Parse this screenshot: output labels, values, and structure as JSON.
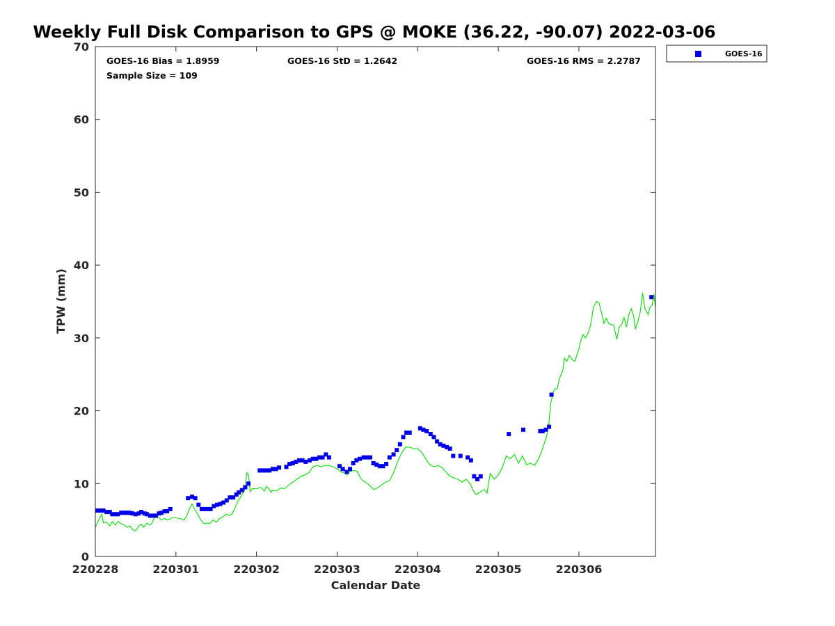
{
  "chart_data": {
    "type": "scatter",
    "title": "Weekly Full Disk Comparison to GPS @ MOKE (36.22, -90.07) 2022-03-06",
    "xlabel": "Calendar Date",
    "ylabel": "TPW (mm)",
    "xlim": [
      0,
      6.95
    ],
    "ylim": [
      0,
      70
    ],
    "grid": false,
    "legend_position": "top-right-outside",
    "x_ticks": [
      {
        "value": 0,
        "label": "220228"
      },
      {
        "value": 1,
        "label": "220301"
      },
      {
        "value": 2,
        "label": "220302"
      },
      {
        "value": 3,
        "label": "220303"
      },
      {
        "value": 4,
        "label": "220304"
      },
      {
        "value": 5,
        "label": "220305"
      },
      {
        "value": 6,
        "label": "220306"
      }
    ],
    "y_ticks": [
      0,
      10,
      20,
      30,
      40,
      50,
      60,
      70
    ],
    "stats": {
      "bias": "GOES-16 Bias = 1.8959",
      "std": "GOES-16 StD = 1.2642",
      "rms": "GOES-16 RMS = 2.2787",
      "sample": "Sample Size = 109"
    },
    "legend": [
      {
        "name": "GOES-16",
        "color": "#0000e6",
        "marker": "square"
      }
    ],
    "series": [
      {
        "name": "GOES-16",
        "kind": "scatter",
        "color": "#0000e6",
        "points": [
          [
            0.03,
            6.3
          ],
          [
            0.07,
            6.3
          ],
          [
            0.1,
            6.3
          ],
          [
            0.14,
            6.1
          ],
          [
            0.18,
            6.1
          ],
          [
            0.21,
            5.8
          ],
          [
            0.25,
            5.8
          ],
          [
            0.28,
            5.8
          ],
          [
            0.32,
            6.0
          ],
          [
            0.36,
            6.0
          ],
          [
            0.39,
            6.0
          ],
          [
            0.43,
            6.0
          ],
          [
            0.46,
            5.9
          ],
          [
            0.5,
            5.8
          ],
          [
            0.54,
            5.9
          ],
          [
            0.57,
            6.1
          ],
          [
            0.61,
            5.9
          ],
          [
            0.64,
            5.8
          ],
          [
            0.68,
            5.6
          ],
          [
            0.72,
            5.6
          ],
          [
            0.75,
            5.6
          ],
          [
            0.79,
            5.9
          ],
          [
            0.82,
            6.0
          ],
          [
            0.86,
            6.2
          ],
          [
            0.89,
            6.2
          ],
          [
            0.93,
            6.5
          ],
          [
            1.15,
            8.0
          ],
          [
            1.2,
            8.2
          ],
          [
            1.24,
            8.0
          ],
          [
            1.28,
            7.1
          ],
          [
            1.32,
            6.5
          ],
          [
            1.36,
            6.5
          ],
          [
            1.4,
            6.5
          ],
          [
            1.43,
            6.5
          ],
          [
            1.47,
            6.9
          ],
          [
            1.51,
            7.1
          ],
          [
            1.55,
            7.2
          ],
          [
            1.59,
            7.4
          ],
          [
            1.63,
            7.7
          ],
          [
            1.67,
            8.1
          ],
          [
            1.71,
            8.1
          ],
          [
            1.75,
            8.5
          ],
          [
            1.78,
            8.8
          ],
          [
            1.82,
            9.1
          ],
          [
            1.86,
            9.5
          ],
          [
            1.9,
            10.0
          ],
          [
            2.04,
            11.8
          ],
          [
            2.08,
            11.8
          ],
          [
            2.12,
            11.8
          ],
          [
            2.16,
            11.8
          ],
          [
            2.2,
            12.0
          ],
          [
            2.24,
            12.0
          ],
          [
            2.28,
            12.2
          ],
          [
            2.37,
            12.3
          ],
          [
            2.41,
            12.7
          ],
          [
            2.45,
            12.8
          ],
          [
            2.49,
            13.0
          ],
          [
            2.53,
            13.2
          ],
          [
            2.57,
            13.2
          ],
          [
            2.61,
            13.0
          ],
          [
            2.66,
            13.2
          ],
          [
            2.7,
            13.4
          ],
          [
            2.74,
            13.4
          ],
          [
            2.78,
            13.6
          ],
          [
            2.82,
            13.6
          ],
          [
            2.86,
            14.0
          ],
          [
            2.9,
            13.6
          ],
          [
            3.03,
            12.4
          ],
          [
            3.07,
            12.0
          ],
          [
            3.12,
            11.6
          ],
          [
            3.16,
            12.0
          ],
          [
            3.2,
            12.8
          ],
          [
            3.24,
            13.2
          ],
          [
            3.28,
            13.4
          ],
          [
            3.33,
            13.6
          ],
          [
            3.37,
            13.6
          ],
          [
            3.41,
            13.6
          ],
          [
            3.45,
            12.8
          ],
          [
            3.49,
            12.6
          ],
          [
            3.53,
            12.4
          ],
          [
            3.57,
            12.4
          ],
          [
            3.61,
            12.7
          ],
          [
            3.65,
            13.6
          ],
          [
            3.7,
            14.0
          ],
          [
            3.74,
            14.6
          ],
          [
            3.78,
            15.4
          ],
          [
            3.82,
            16.4
          ],
          [
            3.86,
            17.0
          ],
          [
            3.9,
            17.0
          ],
          [
            4.03,
            17.6
          ],
          [
            4.07,
            17.4
          ],
          [
            4.11,
            17.2
          ],
          [
            4.16,
            16.8
          ],
          [
            4.2,
            16.4
          ],
          [
            4.24,
            15.8
          ],
          [
            4.28,
            15.4
          ],
          [
            4.32,
            15.2
          ],
          [
            4.36,
            15.0
          ],
          [
            4.4,
            14.8
          ],
          [
            4.44,
            13.8
          ],
          [
            4.53,
            13.8
          ],
          [
            4.62,
            13.6
          ],
          [
            4.66,
            13.2
          ],
          [
            4.7,
            11.0
          ],
          [
            4.74,
            10.6
          ],
          [
            4.78,
            11.0
          ],
          [
            5.13,
            16.8
          ],
          [
            5.31,
            17.4
          ],
          [
            5.52,
            17.2
          ],
          [
            5.55,
            17.2
          ],
          [
            5.59,
            17.4
          ],
          [
            5.63,
            17.8
          ],
          [
            5.66,
            22.2
          ],
          [
            6.9,
            35.6
          ]
        ]
      },
      {
        "name": "GPS",
        "kind": "line",
        "color": "#00dd00",
        "points": [
          [
            0.0,
            4.0
          ],
          [
            0.05,
            5.2
          ],
          [
            0.08,
            5.8
          ],
          [
            0.1,
            4.6
          ],
          [
            0.14,
            4.7
          ],
          [
            0.18,
            4.2
          ],
          [
            0.21,
            4.8
          ],
          [
            0.25,
            4.3
          ],
          [
            0.28,
            4.8
          ],
          [
            0.32,
            4.5
          ],
          [
            0.36,
            4.3
          ],
          [
            0.4,
            4.0
          ],
          [
            0.43,
            4.2
          ],
          [
            0.46,
            3.7
          ],
          [
            0.5,
            3.5
          ],
          [
            0.54,
            4.2
          ],
          [
            0.57,
            4.4
          ],
          [
            0.6,
            4.0
          ],
          [
            0.64,
            4.6
          ],
          [
            0.67,
            4.3
          ],
          [
            0.7,
            4.5
          ],
          [
            0.72,
            5.0
          ],
          [
            0.75,
            5.7
          ],
          [
            0.79,
            5.3
          ],
          [
            0.82,
            5.0
          ],
          [
            0.86,
            5.2
          ],
          [
            0.9,
            5.0
          ],
          [
            0.95,
            5.3
          ],
          [
            1.0,
            5.3
          ],
          [
            1.05,
            5.2
          ],
          [
            1.1,
            5.0
          ],
          [
            1.13,
            5.5
          ],
          [
            1.17,
            6.6
          ],
          [
            1.2,
            7.2
          ],
          [
            1.23,
            6.5
          ],
          [
            1.27,
            5.8
          ],
          [
            1.31,
            5.0
          ],
          [
            1.35,
            4.5
          ],
          [
            1.39,
            4.6
          ],
          [
            1.42,
            4.5
          ],
          [
            1.46,
            5.0
          ],
          [
            1.5,
            4.7
          ],
          [
            1.54,
            5.2
          ],
          [
            1.58,
            5.4
          ],
          [
            1.62,
            5.8
          ],
          [
            1.66,
            5.6
          ],
          [
            1.7,
            5.9
          ],
          [
            1.73,
            6.6
          ],
          [
            1.76,
            7.4
          ],
          [
            1.79,
            7.9
          ],
          [
            1.82,
            8.5
          ],
          [
            1.85,
            9.0
          ],
          [
            1.88,
            11.5
          ],
          [
            1.9,
            11.3
          ],
          [
            1.92,
            8.9
          ],
          [
            1.95,
            9.3
          ],
          [
            2.0,
            9.3
          ],
          [
            2.05,
            9.5
          ],
          [
            2.1,
            9.0
          ],
          [
            2.12,
            9.6
          ],
          [
            2.15,
            9.4
          ],
          [
            2.18,
            8.8
          ],
          [
            2.2,
            9.1
          ],
          [
            2.25,
            9.0
          ],
          [
            2.3,
            9.4
          ],
          [
            2.35,
            9.3
          ],
          [
            2.4,
            9.8
          ],
          [
            2.45,
            10.2
          ],
          [
            2.5,
            10.6
          ],
          [
            2.55,
            11.0
          ],
          [
            2.6,
            11.2
          ],
          [
            2.65,
            11.5
          ],
          [
            2.7,
            12.3
          ],
          [
            2.75,
            12.5
          ],
          [
            2.8,
            12.3
          ],
          [
            2.85,
            12.5
          ],
          [
            2.9,
            12.5
          ],
          [
            2.95,
            12.3
          ],
          [
            3.0,
            12.0
          ],
          [
            3.05,
            11.6
          ],
          [
            3.1,
            11.4
          ],
          [
            3.12,
            11.2
          ],
          [
            3.15,
            11.6
          ],
          [
            3.2,
            11.8
          ],
          [
            3.25,
            11.7
          ],
          [
            3.28,
            11.0
          ],
          [
            3.3,
            10.6
          ],
          [
            3.35,
            10.2
          ],
          [
            3.4,
            9.8
          ],
          [
            3.45,
            9.2
          ],
          [
            3.5,
            9.4
          ],
          [
            3.55,
            9.8
          ],
          [
            3.6,
            10.2
          ],
          [
            3.65,
            10.4
          ],
          [
            3.7,
            11.5
          ],
          [
            3.75,
            13.0
          ],
          [
            3.8,
            14.2
          ],
          [
            3.85,
            15.0
          ],
          [
            3.9,
            15.0
          ],
          [
            3.95,
            14.8
          ],
          [
            4.0,
            14.8
          ],
          [
            4.05,
            14.3
          ],
          [
            4.1,
            13.4
          ],
          [
            4.15,
            12.6
          ],
          [
            4.2,
            12.3
          ],
          [
            4.25,
            12.5
          ],
          [
            4.3,
            12.2
          ],
          [
            4.35,
            11.6
          ],
          [
            4.4,
            11.0
          ],
          [
            4.45,
            10.8
          ],
          [
            4.5,
            10.6
          ],
          [
            4.55,
            10.2
          ],
          [
            4.6,
            10.6
          ],
          [
            4.65,
            10.0
          ],
          [
            4.7,
            8.8
          ],
          [
            4.73,
            8.5
          ],
          [
            4.78,
            8.9
          ],
          [
            4.83,
            9.2
          ],
          [
            4.86,
            8.7
          ],
          [
            4.9,
            11.4
          ],
          [
            4.95,
            10.6
          ],
          [
            5.0,
            11.2
          ],
          [
            5.05,
            12.2
          ],
          [
            5.1,
            13.8
          ],
          [
            5.15,
            13.4
          ],
          [
            5.2,
            14.0
          ],
          [
            5.25,
            12.8
          ],
          [
            5.3,
            13.8
          ],
          [
            5.35,
            12.6
          ],
          [
            5.4,
            12.8
          ],
          [
            5.45,
            12.5
          ],
          [
            5.5,
            13.4
          ],
          [
            5.55,
            14.8
          ],
          [
            5.6,
            16.5
          ],
          [
            5.63,
            18.5
          ],
          [
            5.65,
            21.0
          ],
          [
            5.68,
            22.5
          ],
          [
            5.7,
            23.0
          ],
          [
            5.73,
            23.0
          ],
          [
            5.76,
            24.5
          ],
          [
            5.8,
            25.5
          ],
          [
            5.82,
            27.2
          ],
          [
            5.85,
            26.8
          ],
          [
            5.88,
            27.6
          ],
          [
            5.92,
            27.0
          ],
          [
            5.95,
            26.8
          ],
          [
            6.0,
            28.5
          ],
          [
            6.02,
            29.5
          ],
          [
            6.05,
            30.5
          ],
          [
            6.08,
            30.0
          ],
          [
            6.12,
            30.8
          ],
          [
            6.15,
            32.0
          ],
          [
            6.18,
            34.2
          ],
          [
            6.22,
            35.0
          ],
          [
            6.25,
            34.8
          ],
          [
            6.28,
            33.5
          ],
          [
            6.31,
            32.0
          ],
          [
            6.34,
            32.7
          ],
          [
            6.37,
            32.0
          ],
          [
            6.4,
            31.8
          ],
          [
            6.43,
            31.8
          ],
          [
            6.47,
            29.8
          ],
          [
            6.5,
            31.5
          ],
          [
            6.53,
            31.8
          ],
          [
            6.56,
            32.8
          ],
          [
            6.59,
            31.5
          ],
          [
            6.62,
            33.2
          ],
          [
            6.65,
            34.0
          ],
          [
            6.68,
            33.0
          ],
          [
            6.7,
            31.2
          ],
          [
            6.73,
            32.2
          ],
          [
            6.76,
            33.5
          ],
          [
            6.79,
            36.2
          ],
          [
            6.82,
            34.0
          ],
          [
            6.86,
            33.2
          ],
          [
            6.88,
            34.2
          ],
          [
            6.91,
            34.5
          ],
          [
            6.93,
            36.0
          ],
          [
            6.95,
            34.2
          ]
        ]
      }
    ]
  }
}
